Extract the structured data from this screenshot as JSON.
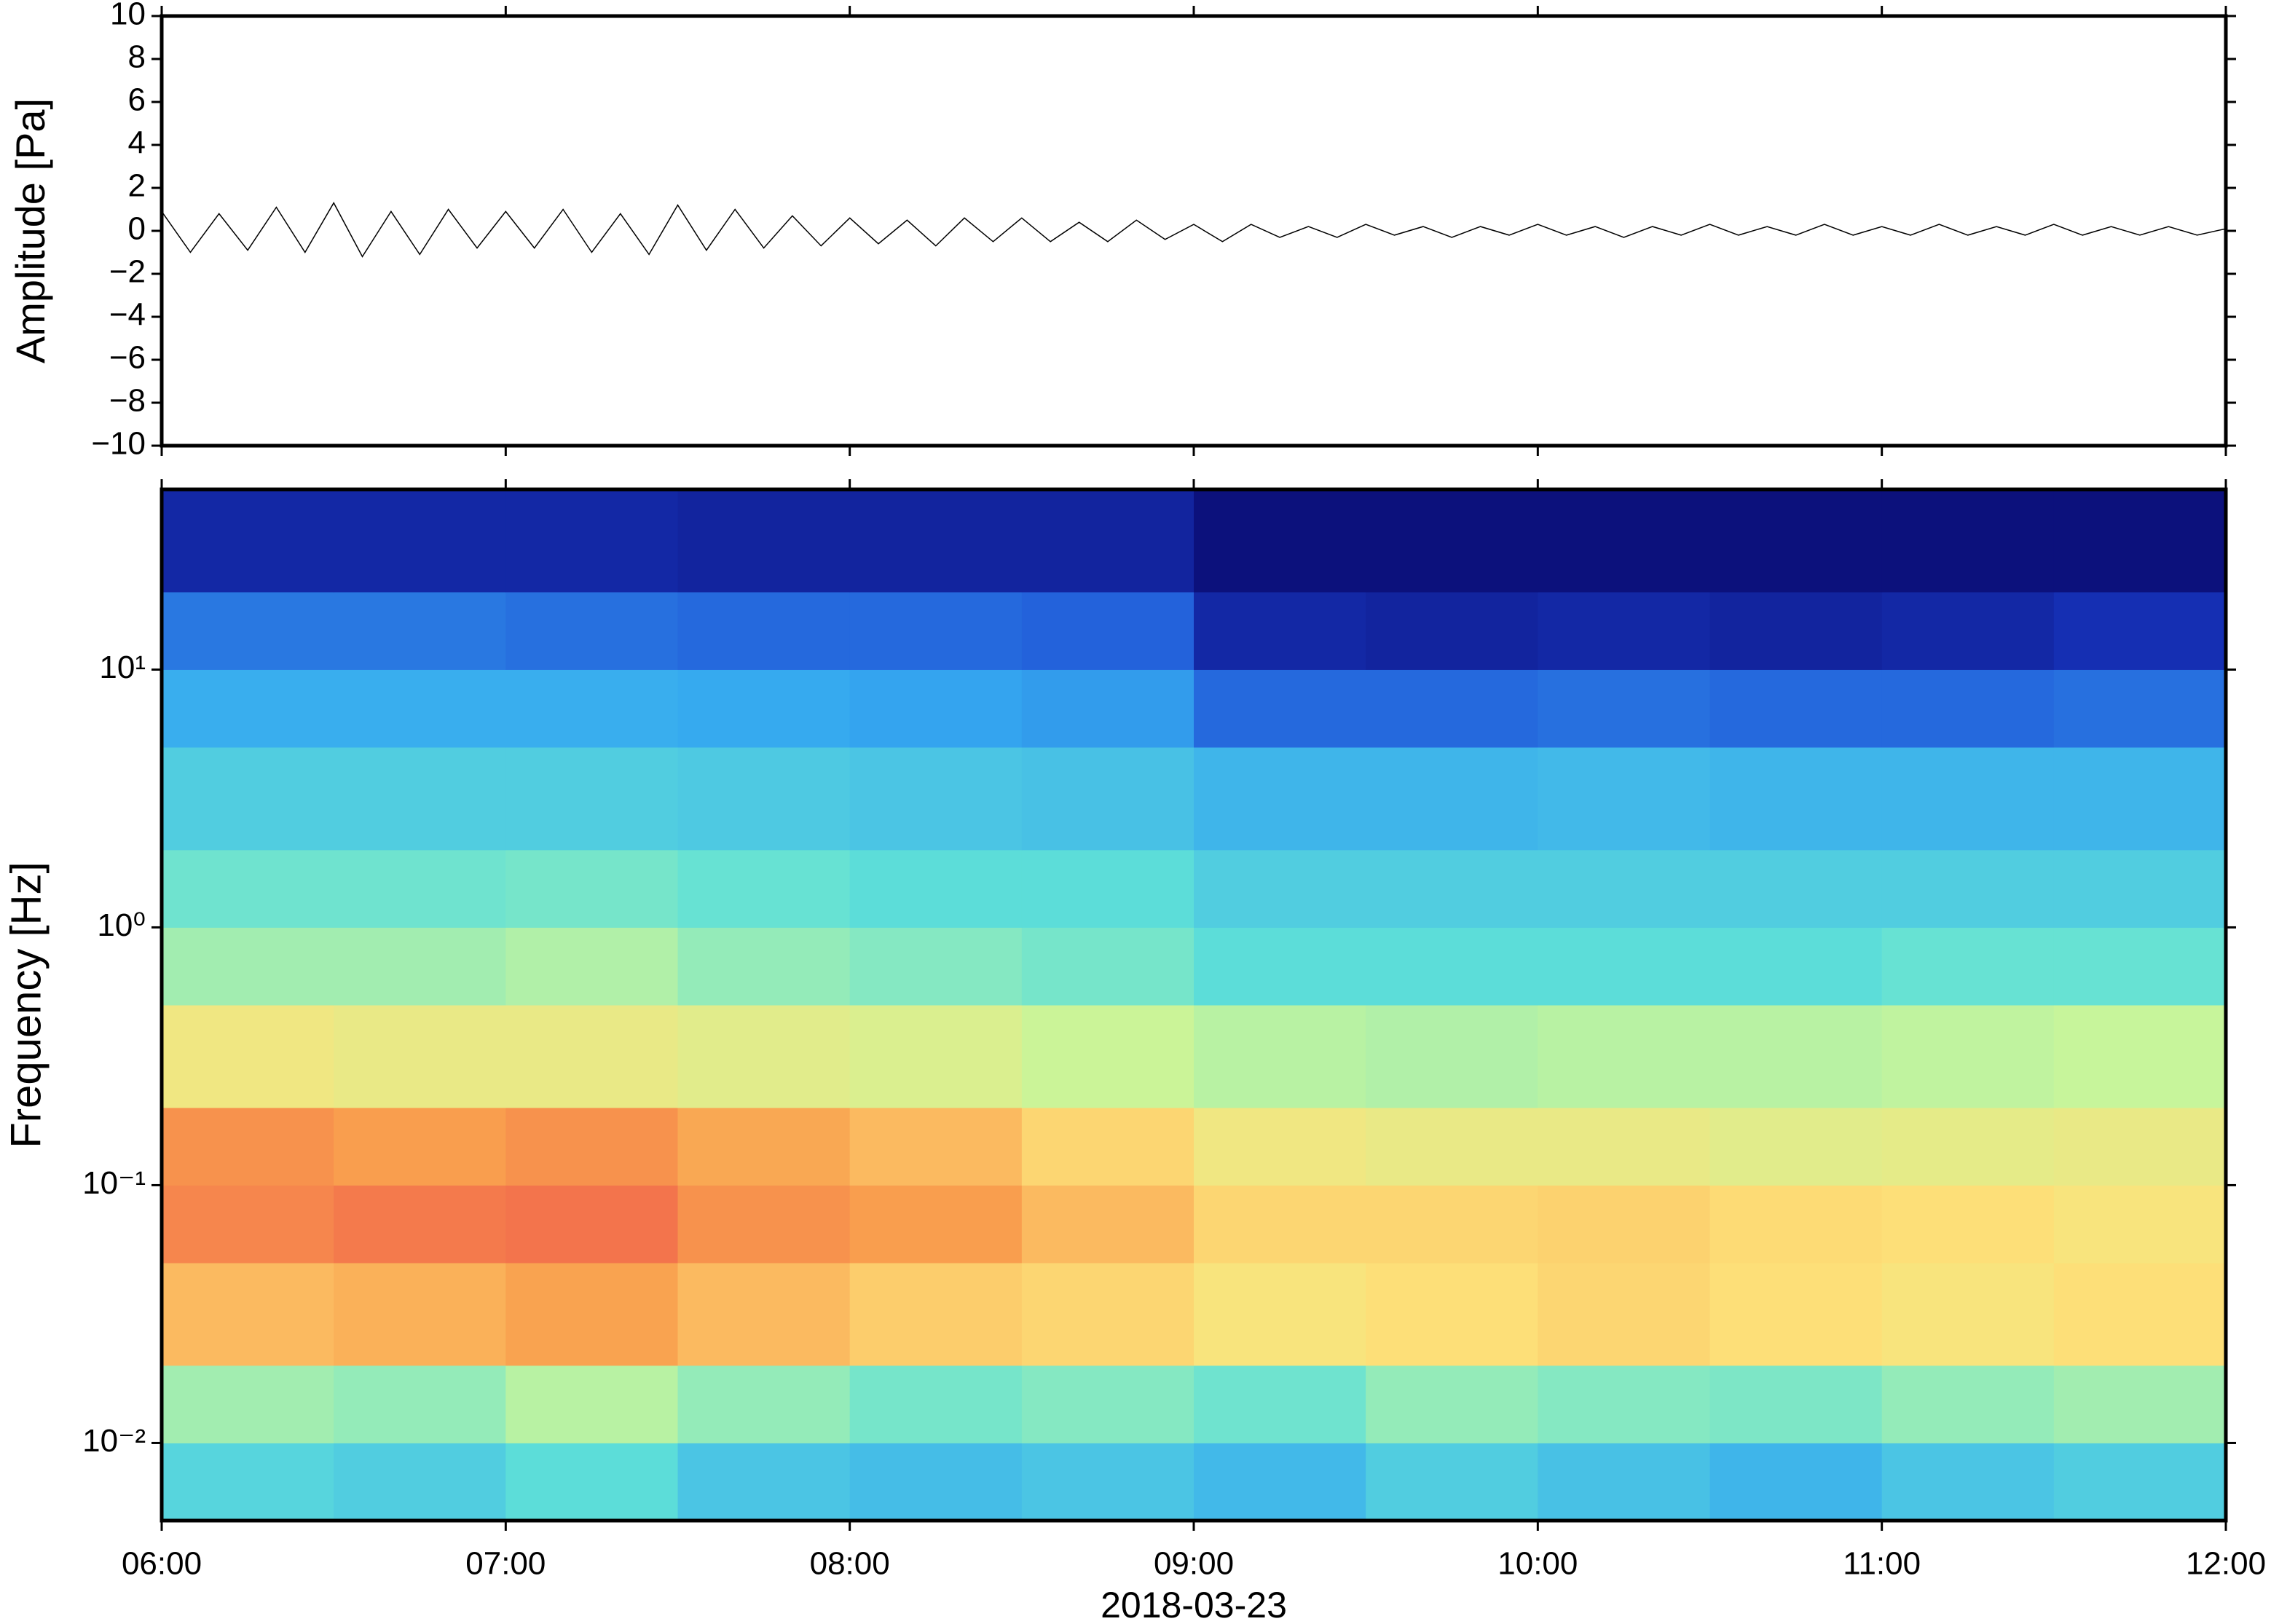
{
  "chart_data": [
    {
      "type": "line",
      "ylabel": "Amplitude [Pa]",
      "color": "#000000",
      "x": [
        "06:00",
        "06:05",
        "06:10",
        "06:15",
        "06:20",
        "06:25",
        "06:30",
        "06:35",
        "06:40",
        "06:45",
        "06:50",
        "06:55",
        "07:00",
        "07:05",
        "07:10",
        "07:15",
        "07:20",
        "07:25",
        "07:30",
        "07:35",
        "07:40",
        "07:45",
        "07:50",
        "07:55",
        "08:00",
        "08:05",
        "08:10",
        "08:15",
        "08:20",
        "08:25",
        "08:30",
        "08:35",
        "08:40",
        "08:45",
        "08:50",
        "08:55",
        "09:00",
        "09:05",
        "09:10",
        "09:15",
        "09:20",
        "09:25",
        "09:30",
        "09:35",
        "09:40",
        "09:45",
        "09:50",
        "09:55",
        "10:00",
        "10:05",
        "10:10",
        "10:15",
        "10:20",
        "10:25",
        "10:30",
        "10:35",
        "10:40",
        "10:45",
        "10:50",
        "10:55",
        "11:00",
        "11:05",
        "11:10",
        "11:15",
        "11:20",
        "11:25",
        "11:30",
        "11:35",
        "11:40",
        "11:45",
        "11:50",
        "11:55",
        "12:00"
      ],
      "values": [
        0.9,
        -1.0,
        0.8,
        -0.9,
        1.1,
        -1.0,
        1.3,
        -1.2,
        0.9,
        -1.1,
        1.0,
        -0.8,
        0.9,
        -0.8,
        1.0,
        -1.0,
        0.8,
        -1.1,
        1.2,
        -0.9,
        1.0,
        -0.8,
        0.7,
        -0.7,
        0.6,
        -0.6,
        0.5,
        -0.7,
        0.6,
        -0.5,
        0.6,
        -0.5,
        0.4,
        -0.5,
        0.5,
        -0.4,
        0.3,
        -0.5,
        0.3,
        -0.3,
        0.2,
        -0.3,
        0.3,
        -0.2,
        0.2,
        -0.3,
        0.2,
        -0.2,
        0.3,
        -0.2,
        0.2,
        -0.3,
        0.2,
        -0.2,
        0.3,
        -0.2,
        0.2,
        -0.2,
        0.3,
        -0.2,
        0.2,
        -0.2,
        0.3,
        -0.2,
        0.2,
        -0.2,
        0.3,
        -0.2,
        0.2,
        -0.2,
        0.2,
        -0.2,
        0.1
      ],
      "xlim": [
        "06:00",
        "12:00"
      ],
      "ylim": [
        -10,
        10
      ],
      "yticks": [
        {
          "value": -10,
          "label": "−10"
        },
        {
          "value": -8,
          "label": "−8"
        },
        {
          "value": -6,
          "label": "−6"
        },
        {
          "value": -4,
          "label": "−4"
        },
        {
          "value": -2,
          "label": "−2"
        },
        0,
        2,
        4,
        6,
        8,
        10
      ]
    },
    {
      "type": "heatmap",
      "ylabel": "Frequency [Hz]",
      "xlabel": "2018-03-23",
      "log_y": true,
      "xlim": [
        "06:00",
        "12:00"
      ],
      "ylim": [
        0.005,
        50
      ],
      "xticks": [
        "06:00",
        "07:00",
        "08:00",
        "09:00",
        "10:00",
        "11:00",
        "12:00"
      ],
      "yticks": [
        {
          "value": 0.01,
          "label": "10⁻²"
        },
        {
          "value": 0.1,
          "label": "10⁻¹"
        },
        {
          "value": 1,
          "label": "10⁰"
        },
        {
          "value": 10,
          "label": "10¹"
        }
      ],
      "x_edges": [
        "06:00",
        "06:30",
        "07:00",
        "07:30",
        "08:00",
        "08:30",
        "09:00",
        "09:30",
        "10:00",
        "10:30",
        "11:00",
        "11:30",
        "12:00"
      ],
      "y_edges": [
        0.005,
        0.01,
        0.02,
        0.05,
        0.1,
        0.2,
        0.5,
        1,
        2,
        5,
        10,
        20,
        50
      ],
      "zlim": [
        0,
        1
      ],
      "colormap": [
        "#0a0a6e",
        "#1a3fd0",
        "#35a8f0",
        "#5fe0d8",
        "#c8f59a",
        "#fde27a",
        "#f9a04e",
        "#ee4a4a"
      ],
      "values": [
        [
          0.4,
          0.38,
          0.42,
          0.36,
          0.34,
          0.36,
          0.33,
          0.38,
          0.35,
          0.32,
          0.36,
          0.38
        ],
        [
          0.52,
          0.5,
          0.55,
          0.5,
          0.46,
          0.48,
          0.45,
          0.5,
          0.48,
          0.47,
          0.5,
          0.52
        ],
        [
          0.8,
          0.82,
          0.85,
          0.8,
          0.76,
          0.74,
          0.7,
          0.72,
          0.74,
          0.72,
          0.7,
          0.72
        ],
        [
          0.9,
          0.92,
          0.93,
          0.88,
          0.86,
          0.8,
          0.74,
          0.74,
          0.75,
          0.73,
          0.72,
          0.7
        ],
        [
          0.88,
          0.86,
          0.88,
          0.84,
          0.8,
          0.74,
          0.68,
          0.66,
          0.66,
          0.64,
          0.65,
          0.66
        ],
        [
          0.68,
          0.66,
          0.66,
          0.64,
          0.62,
          0.58,
          0.55,
          0.54,
          0.55,
          0.55,
          0.56,
          0.57
        ],
        [
          0.52,
          0.52,
          0.54,
          0.5,
          0.48,
          0.46,
          0.42,
          0.42,
          0.42,
          0.42,
          0.44,
          0.44
        ],
        [
          0.45,
          0.45,
          0.46,
          0.44,
          0.42,
          0.42,
          0.38,
          0.38,
          0.38,
          0.38,
          0.38,
          0.38
        ],
        [
          0.38,
          0.38,
          0.38,
          0.37,
          0.36,
          0.35,
          0.32,
          0.32,
          0.33,
          0.32,
          0.32,
          0.32
        ],
        [
          0.3,
          0.3,
          0.3,
          0.29,
          0.28,
          0.27,
          0.2,
          0.2,
          0.21,
          0.2,
          0.2,
          0.21
        ],
        [
          0.22,
          0.22,
          0.21,
          0.2,
          0.2,
          0.19,
          0.08,
          0.07,
          0.08,
          0.07,
          0.08,
          0.1
        ],
        [
          0.08,
          0.08,
          0.08,
          0.07,
          0.07,
          0.07,
          0.02,
          0.02,
          0.02,
          0.02,
          0.02,
          0.02
        ]
      ]
    }
  ]
}
